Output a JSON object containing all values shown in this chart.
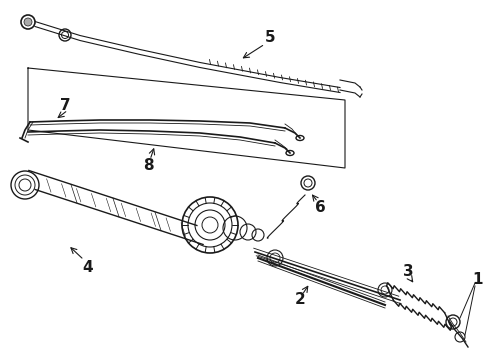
{
  "bg_color": "#ffffff",
  "line_color": "#1a1a1a",
  "fig_width": 4.9,
  "fig_height": 3.6,
  "dpi": 100,
  "label_fontsize": 11,
  "label_color": "#1a1a1a"
}
